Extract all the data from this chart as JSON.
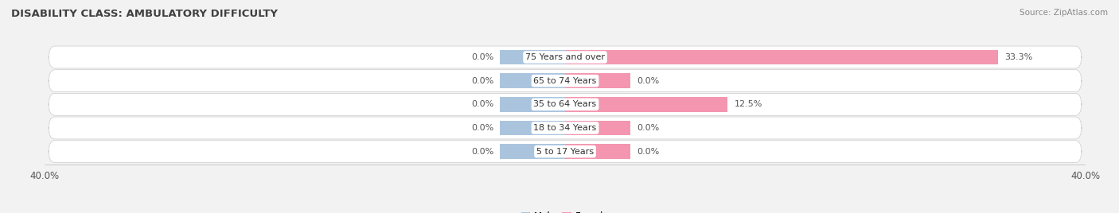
{
  "title": "DISABILITY CLASS: AMBULATORY DIFFICULTY",
  "source": "Source: ZipAtlas.com",
  "categories": [
    "5 to 17 Years",
    "18 to 34 Years",
    "35 to 64 Years",
    "65 to 74 Years",
    "75 Years and over"
  ],
  "male_values": [
    0.0,
    0.0,
    0.0,
    0.0,
    0.0
  ],
  "female_values": [
    0.0,
    0.0,
    12.5,
    0.0,
    33.3
  ],
  "male_labels": [
    "0.0%",
    "0.0%",
    "0.0%",
    "0.0%",
    "0.0%"
  ],
  "female_labels": [
    "0.0%",
    "0.0%",
    "12.5%",
    "0.0%",
    "33.3%"
  ],
  "xlim": 40.0,
  "male_color": "#aac4de",
  "female_color": "#f496b0",
  "row_bg_color": "#e8e8ea",
  "fig_bg_color": "#f2f2f2",
  "label_color": "#555555",
  "title_color": "#404040",
  "source_color": "#888888",
  "bar_height": 0.62,
  "male_placeholder": 5.0,
  "female_placeholder": 5.0,
  "figsize": [
    14.06,
    2.68
  ],
  "dpi": 100
}
